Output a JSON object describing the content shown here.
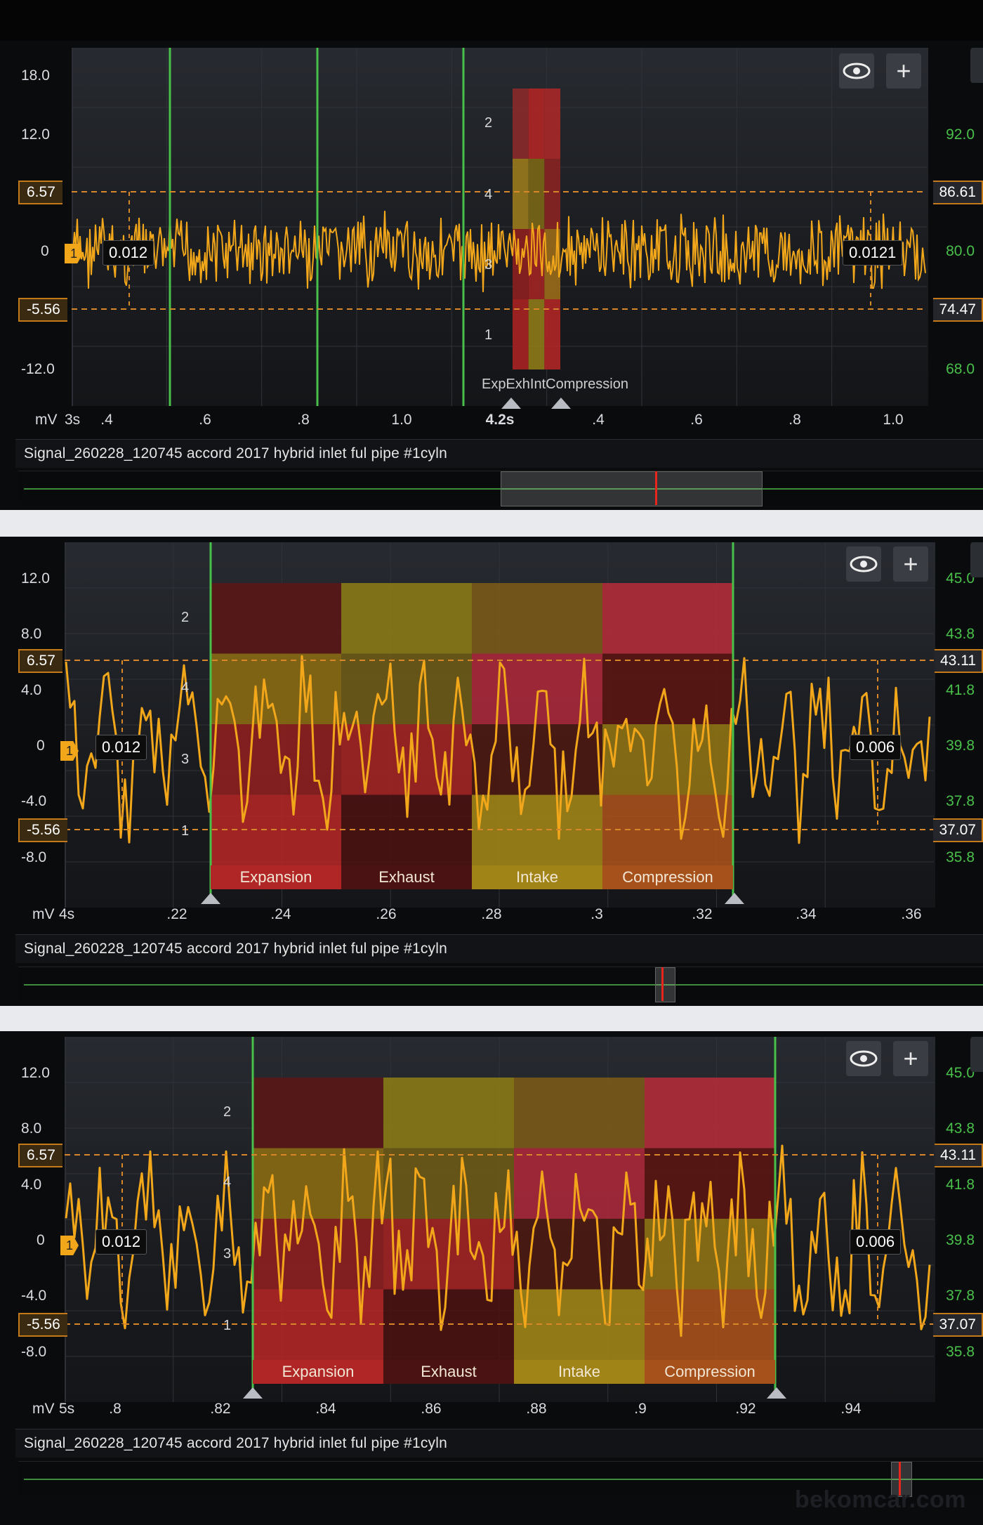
{
  "signal_name": "Signal_260228_120745 accord 2017 hybrid inlet ful pipe #1cyln",
  "watermark": "bekomcar.com",
  "icons": {
    "visibility": "eye-icon",
    "add": "plus-icon"
  },
  "colors": {
    "trace": "#f2a71b",
    "cursor_line": "#49c04a",
    "ref_line": "#d8862a",
    "nav_cursor": "#e8261e"
  },
  "panels": [
    {
      "unit": "mV",
      "timebase": "3s",
      "y_left_ticks": [
        "18.0",
        "12.0",
        "0",
        "-12.0"
      ],
      "y_right_ticks": [
        "92.0",
        "80.0",
        "68.0"
      ],
      "ref_upper": {
        "left": "6.57",
        "right": "86.61"
      },
      "ref_lower": {
        "left": "-5.56",
        "right": "74.47"
      },
      "cursor_left": "0.012",
      "cursor_right": "0.0121",
      "channel": "1",
      "x_ticks": [
        ".4",
        ".6",
        ".8",
        "1.0",
        "4.2s",
        ".4",
        ".6",
        ".8",
        "1.0"
      ],
      "phase_numbers": [
        "2",
        "4",
        "3",
        "1"
      ],
      "phase_overlay_label": "ExpExhIntCompression",
      "nav_window": [
        0.5,
        0.77
      ],
      "nav_cursor": 0.66
    },
    {
      "unit": "mV",
      "timebase": "4s",
      "y_left_ticks": [
        "12.0",
        "8.0",
        "4.0",
        "0",
        "-4.0",
        "-8.0"
      ],
      "y_right_ticks": [
        "45.0",
        "43.8",
        "41.8",
        "39.8",
        "37.8",
        "35.8"
      ],
      "ref_upper": {
        "left": "6.57",
        "right": "43.11"
      },
      "ref_lower": {
        "left": "-5.56",
        "right": "37.07"
      },
      "cursor_left": "0.012",
      "cursor_right": "0.006",
      "channel": "1",
      "x_ticks": [
        ".22",
        ".24",
        ".26",
        ".28",
        ".3",
        ".32",
        ".34",
        ".36"
      ],
      "phase_numbers": [
        "2",
        "4",
        "3",
        "1"
      ],
      "phases": [
        "Expansion",
        "Exhaust",
        "Intake",
        "Compression"
      ],
      "nav_window": [
        0.66,
        0.68
      ],
      "nav_cursor": 0.667
    },
    {
      "unit": "mV",
      "timebase": "5s",
      "y_left_ticks": [
        "12.0",
        "8.0",
        "4.0",
        "0",
        "-4.0",
        "-8.0"
      ],
      "y_right_ticks": [
        "45.0",
        "43.8",
        "41.8",
        "39.8",
        "37.8",
        "35.8"
      ],
      "ref_upper": {
        "left": "6.57",
        "right": "43.11"
      },
      "ref_lower": {
        "left": "-5.56",
        "right": "37.07"
      },
      "cursor_left": "0.012",
      "cursor_right": "0.006",
      "channel": "1",
      "x_ticks": [
        ".8",
        ".82",
        ".84",
        ".86",
        ".88",
        ".9",
        ".92",
        ".94"
      ],
      "phase_numbers": [
        "2",
        "4",
        "3",
        "1"
      ],
      "phases": [
        "Expansion",
        "Exhaust",
        "Intake",
        "Compression"
      ],
      "nav_window": [
        0.905,
        0.925
      ],
      "nav_cursor": 0.913
    }
  ]
}
